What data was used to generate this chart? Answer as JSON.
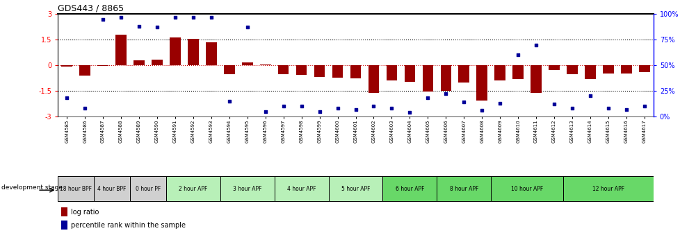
{
  "title": "GDS443 / 8865",
  "samples": [
    "GSM4585",
    "GSM4586",
    "GSM4587",
    "GSM4588",
    "GSM4589",
    "GSM4590",
    "GSM4591",
    "GSM4592",
    "GSM4593",
    "GSM4594",
    "GSM4595",
    "GSM4596",
    "GSM4597",
    "GSM4598",
    "GSM4599",
    "GSM4600",
    "GSM4601",
    "GSM4602",
    "GSM4603",
    "GSM4604",
    "GSM4605",
    "GSM4606",
    "GSM4607",
    "GSM4608",
    "GSM4609",
    "GSM4610",
    "GSM4611",
    "GSM4612",
    "GSM4613",
    "GSM4614",
    "GSM4615",
    "GSM4616",
    "GSM4617"
  ],
  "log_ratio": [
    -0.08,
    -0.62,
    -0.05,
    1.78,
    0.28,
    0.33,
    1.62,
    1.55,
    1.35,
    -0.52,
    0.15,
    0.04,
    -0.52,
    -0.58,
    -0.68,
    -0.72,
    -0.78,
    -1.62,
    -0.88,
    -0.98,
    -1.52,
    -1.48,
    -1.02,
    -2.05,
    -0.88,
    -0.82,
    -1.62,
    -0.28,
    -0.52,
    -0.82,
    -0.48,
    -0.48,
    -0.42
  ],
  "percentile": [
    18,
    8,
    95,
    97,
    88,
    87,
    97,
    97,
    97,
    15,
    87,
    5,
    10,
    10,
    5,
    8,
    7,
    10,
    8,
    4,
    18,
    22,
    14,
    6,
    13,
    60,
    70,
    12,
    8,
    20,
    8,
    7,
    10
  ],
  "bar_color": "#990000",
  "dot_color": "#000099",
  "ylim": [
    -3,
    3
  ],
  "y2lim": [
    0,
    100
  ],
  "yticks": [
    -3,
    -1.5,
    0,
    1.5,
    3
  ],
  "y2ticks": [
    0,
    25,
    50,
    75,
    100
  ],
  "y2ticklabels": [
    "0%",
    "25%",
    "50%",
    "75%",
    "100%"
  ],
  "stage_groups": [
    {
      "label": "18 hour BPF",
      "start": 0,
      "end": 2,
      "color": "#d0d0d0"
    },
    {
      "label": "4 hour BPF",
      "start": 2,
      "end": 4,
      "color": "#d0d0d0"
    },
    {
      "label": "0 hour PF",
      "start": 4,
      "end": 6,
      "color": "#d0d0d0"
    },
    {
      "label": "2 hour APF",
      "start": 6,
      "end": 9,
      "color": "#b8f0b8"
    },
    {
      "label": "3 hour APF",
      "start": 9,
      "end": 12,
      "color": "#b8f0b8"
    },
    {
      "label": "4 hour APF",
      "start": 12,
      "end": 15,
      "color": "#b8f0b8"
    },
    {
      "label": "5 hour APF",
      "start": 15,
      "end": 18,
      "color": "#b8f0b8"
    },
    {
      "label": "6 hour APF",
      "start": 18,
      "end": 21,
      "color": "#68d868"
    },
    {
      "label": "8 hour APF",
      "start": 21,
      "end": 24,
      "color": "#68d868"
    },
    {
      "label": "10 hour APF",
      "start": 24,
      "end": 28,
      "color": "#68d868"
    },
    {
      "label": "12 hour APF",
      "start": 28,
      "end": 33,
      "color": "#68d868"
    }
  ],
  "legend_log_ratio": "log ratio",
  "legend_percentile": "percentile rank within the sample",
  "xlabel_dev": "development stage"
}
